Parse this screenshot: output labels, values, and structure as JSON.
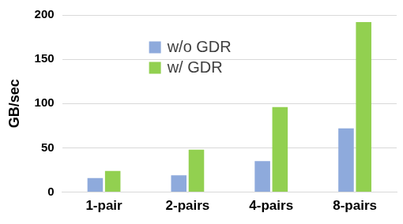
{
  "chart_data": {
    "type": "bar",
    "y_label": "GB/sec",
    "categories": [
      "1-pair",
      "2-pairs",
      "4-pairs",
      "8-pairs"
    ],
    "series": [
      {
        "name": "w/o GDR",
        "color": "#8eaadc",
        "values": [
          16,
          19,
          35,
          72
        ]
      },
      {
        "name": "w/ GDR",
        "color": "#92d050",
        "values": [
          24,
          48,
          96,
          192
        ]
      }
    ],
    "ylim": [
      0,
      200
    ],
    "yticks": [
      0,
      50,
      100,
      150,
      200
    ],
    "grid": true,
    "legend": "upper left"
  }
}
